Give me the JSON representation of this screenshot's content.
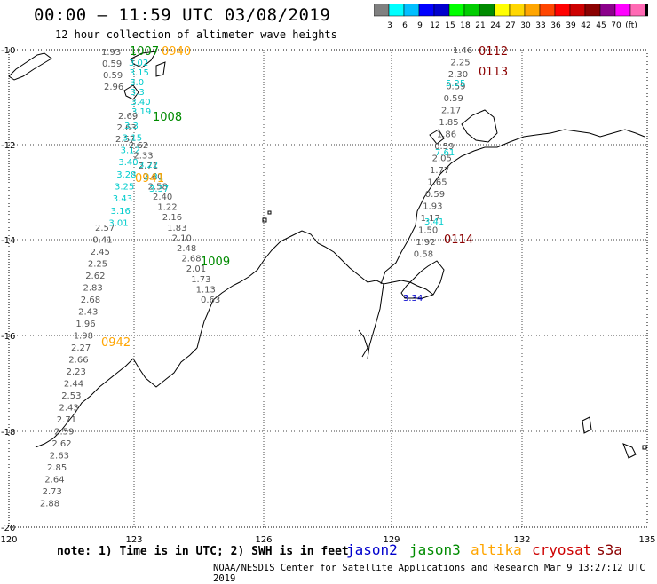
{
  "header": {
    "title": "00:00 – 11:59 UTC 03/08/2019",
    "subtitle": "12 hour collection of altimeter wave heights"
  },
  "legend": {
    "colors": [
      "#808080",
      "#00ffff",
      "#00bfff",
      "#0000ff",
      "#0000cd",
      "#00ff00",
      "#00cd00",
      "#008b00",
      "#ffff00",
      "#ffd700",
      "#ffa500",
      "#ff4500",
      "#ff0000",
      "#cd0000",
      "#8b0000",
      "#8b008b",
      "#ff00ff",
      "#ff69b4",
      "#000000"
    ],
    "labels": [
      "3",
      "6",
      "9",
      "12",
      "15",
      "18",
      "21",
      "24",
      "27",
      "30",
      "33",
      "36",
      "39",
      "42",
      "45",
      "70",
      "(ft)"
    ]
  },
  "axes": {
    "x_labels": [
      "120",
      "123",
      "126",
      "129",
      "132",
      "135"
    ],
    "y_labels": [
      "-10",
      "-12",
      "-14",
      "-16",
      "-18",
      "-20"
    ]
  },
  "footer": {
    "note": "note: 1) Time is in UTC; 2) SWH is in feet",
    "satellites": [
      {
        "name": "jason2",
        "color": "#0000cd"
      },
      {
        "name": "jason3",
        "color": "#008b00"
      },
      {
        "name": "altika",
        "color": "#ffa500"
      },
      {
        "name": "cryosat",
        "color": "#cd0000"
      },
      {
        "name": "s3a",
        "color": "#8b0000"
      }
    ],
    "credit": "NOAA/NESDIS Center for Satellite Applications and Research   Mar  9 13:27:12 UTC 2019"
  },
  "time_labels": [
    {
      "text": "1007",
      "color": "#008b00"
    },
    {
      "text": "0940",
      "color": "#ffa500"
    },
    {
      "text": "1008",
      "color": "#008b00"
    },
    {
      "text": "0941",
      "color": "#ffa500"
    },
    {
      "text": "1009",
      "color": "#008b00"
    },
    {
      "text": "0942",
      "color": "#ffa500"
    },
    {
      "text": "0112",
      "color": "#8b0000"
    },
    {
      "text": "0113",
      "color": "#8b0000"
    },
    {
      "text": "0114",
      "color": "#8b0000"
    }
  ],
  "tracks": {
    "gray_a": [
      "1.93",
      "0.59",
      "0.59",
      "2.96"
    ],
    "cyan_a": [
      "3.02",
      "3.15",
      "3.0",
      "3.3",
      "3.40",
      "3.19"
    ],
    "gray_b": [
      "2.69",
      "2.63",
      "2.57"
    ],
    "cyan_b": [
      "3.3",
      "3.15",
      "3.12",
      "3.40",
      "3.28",
      "3.25",
      "3.43",
      "3.16",
      "3.01"
    ],
    "gray_c": [
      "2.62",
      "2.33",
      "2.71",
      "2.60",
      "2.58",
      "2.40",
      "1.22",
      "2.16",
      "1.83",
      "2.10",
      "2.48",
      "2.68",
      "2.01",
      "1.73",
      "1.13",
      "0.63"
    ],
    "cyan_c": [
      "3.22",
      "3.31",
      "3.37"
    ],
    "gray_d": [
      "2.57",
      "0.41",
      "2.45",
      "2.25",
      "2.62",
      "2.83",
      "2.68",
      "2.43",
      "1.96",
      "1.98",
      "2.27",
      "2.66",
      "2.23",
      "2.44",
      "2.53",
      "2.43",
      "2.71",
      "2.59",
      "2.62",
      "2.63",
      "2.85",
      "2.64",
      "2.73",
      "2.88"
    ],
    "east_gray": [
      "1.46",
      "2.25",
      "2.30",
      "0.59",
      "0.59",
      "2.17",
      "1.85",
      "1.86",
      "0.59",
      "2.05",
      "1.77",
      "1.65",
      "0.59",
      "1.93",
      "1.17",
      "1.50",
      "1.92",
      "0.58"
    ],
    "east_cyan": [
      "5.25",
      "7.61",
      "3.41"
    ],
    "east_blue": [
      "3.34"
    ]
  }
}
